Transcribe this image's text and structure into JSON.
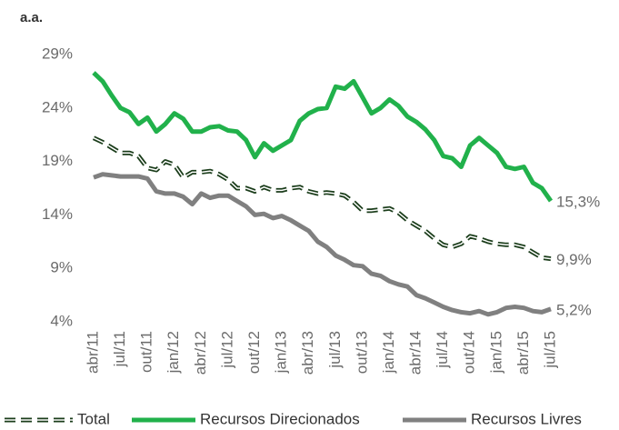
{
  "chart_data": {
    "type": "line",
    "title": "a.a.",
    "categories": [
      "abr/11",
      null,
      null,
      "jul/11",
      null,
      null,
      "out/11",
      null,
      null,
      "jan/12",
      null,
      null,
      "abr/12",
      null,
      null,
      "jul/12",
      null,
      null,
      "out/12",
      null,
      null,
      "jan/13",
      null,
      null,
      "abr/13",
      null,
      null,
      "jul/13",
      null,
      null,
      "out/13",
      null,
      null,
      "jan/14",
      null,
      null,
      "abr/14",
      null,
      null,
      "jul/14",
      null,
      null,
      "out/14",
      null,
      null,
      "jan/15",
      null,
      null,
      "abr/15",
      null,
      null,
      "jul/15"
    ],
    "series": [
      {
        "name": "Total",
        "color": "#1b3d1b",
        "dash": true,
        "values": [
          21.2,
          20.8,
          20.3,
          19.8,
          19.8,
          19.5,
          18.4,
          18.2,
          19.0,
          18.7,
          17.5,
          18.0,
          18.0,
          18.1,
          17.8,
          17.3,
          16.5,
          16.5,
          16.2,
          16.6,
          16.3,
          16.3,
          16.5,
          16.6,
          16.2,
          16.0,
          16.1,
          16.0,
          15.8,
          15.2,
          14.4,
          14.4,
          14.5,
          14.6,
          14.2,
          13.5,
          13.0,
          12.5,
          11.8,
          11.2,
          11.0,
          11.3,
          12.0,
          11.8,
          11.5,
          11.3,
          11.2,
          11.2,
          11.0,
          10.5,
          10.0,
          9.9
        ],
        "value_labels": [
          null,
          null,
          null,
          null,
          null,
          null,
          null,
          null,
          null,
          null,
          null,
          null,
          null,
          null,
          null,
          null,
          null,
          null,
          null,
          null,
          null,
          null,
          null,
          null,
          null,
          null,
          null,
          null,
          null,
          null,
          null,
          null,
          null,
          null,
          null,
          null,
          null,
          null,
          null,
          null,
          null,
          null,
          null,
          null,
          null,
          null,
          null,
          null,
          null,
          null,
          null,
          "9,9%"
        ]
      },
      {
        "name": "Recursos Direcionados",
        "color": "#21b14b",
        "dash": false,
        "values": [
          27.3,
          26.5,
          25.2,
          24.0,
          23.6,
          22.5,
          23.1,
          21.8,
          22.5,
          23.5,
          23.0,
          21.8,
          21.8,
          22.2,
          22.3,
          21.9,
          21.8,
          21.0,
          19.4,
          20.7,
          20.0,
          20.5,
          21.0,
          22.8,
          23.5,
          23.9,
          24.0,
          26.0,
          25.8,
          26.5,
          25.0,
          23.5,
          24.0,
          24.8,
          24.2,
          23.2,
          22.7,
          22.0,
          21.0,
          19.5,
          19.3,
          18.5,
          20.5,
          21.2,
          20.5,
          19.8,
          18.5,
          18.3,
          18.5,
          17.0,
          16.5,
          15.3
        ],
        "value_labels": [
          null,
          null,
          null,
          null,
          null,
          null,
          null,
          null,
          null,
          null,
          null,
          null,
          null,
          null,
          null,
          null,
          null,
          null,
          null,
          null,
          null,
          null,
          null,
          null,
          null,
          null,
          null,
          null,
          null,
          null,
          null,
          null,
          null,
          null,
          null,
          null,
          null,
          null,
          null,
          null,
          null,
          null,
          null,
          null,
          null,
          null,
          null,
          null,
          null,
          null,
          null,
          "15,3%"
        ]
      },
      {
        "name": "Recursos Livres",
        "color": "#808080",
        "dash": false,
        "values": [
          17.5,
          17.8,
          17.7,
          17.6,
          17.6,
          17.6,
          17.4,
          16.2,
          16.0,
          16.0,
          15.7,
          15.0,
          16.0,
          15.6,
          15.8,
          15.8,
          15.3,
          14.8,
          14.0,
          14.1,
          13.7,
          13.9,
          13.5,
          13.0,
          12.5,
          11.5,
          11.0,
          10.2,
          9.8,
          9.3,
          9.2,
          8.5,
          8.3,
          7.8,
          7.5,
          7.3,
          6.5,
          6.2,
          5.8,
          5.4,
          5.1,
          4.9,
          4.8,
          5.0,
          4.7,
          4.9,
          5.3,
          5.4,
          5.3,
          5.0,
          4.9,
          5.2
        ],
        "value_labels": [
          null,
          null,
          null,
          null,
          null,
          null,
          null,
          null,
          null,
          null,
          null,
          null,
          null,
          null,
          null,
          null,
          null,
          null,
          null,
          null,
          null,
          null,
          null,
          null,
          null,
          null,
          null,
          null,
          null,
          null,
          null,
          null,
          null,
          null,
          null,
          null,
          null,
          null,
          null,
          null,
          null,
          null,
          null,
          null,
          null,
          null,
          null,
          null,
          null,
          null,
          null,
          "5,2%"
        ]
      }
    ],
    "ylim": [
      4,
      29
    ],
    "yticks": [
      {
        "value": 4,
        "label": "4%"
      },
      {
        "value": 9,
        "label": "9%"
      },
      {
        "value": 14,
        "label": "14%"
      },
      {
        "value": 19,
        "label": "19%"
      },
      {
        "value": 24,
        "label": "24%"
      },
      {
        "value": 29,
        "label": "29%"
      }
    ],
    "grid": false,
    "legend": "bottom"
  }
}
